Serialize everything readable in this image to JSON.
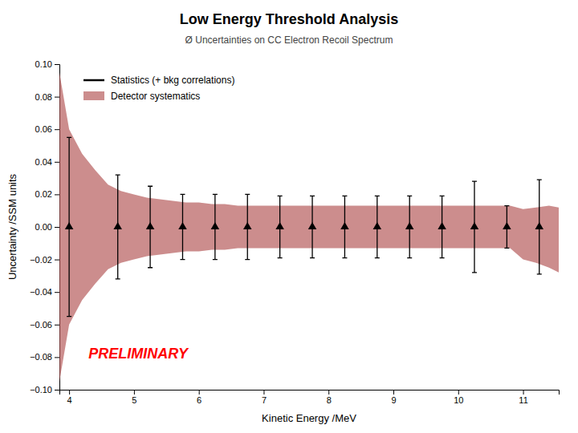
{
  "chart_data": {
    "type": "errorbar",
    "title": "Low Energy Threshold Analysis",
    "subtitle": "Ø Uncertainties on CC Electron Recoil Spectrum",
    "x_label": "Kinetic Energy /MeV",
    "y_label": "Uncertainty /SSM units",
    "xlim": [
      3.85,
      11.55
    ],
    "ylim": [
      -0.1,
      0.1
    ],
    "xticks": [
      4,
      5,
      6,
      7,
      8,
      9,
      10,
      11
    ],
    "yticks": [
      {
        "value": -0.1,
        "label": "−0.10"
      },
      {
        "value": -0.08,
        "label": "−0.08"
      },
      {
        "value": -0.06,
        "label": "−0.06"
      },
      {
        "value": -0.04,
        "label": "−0.04"
      },
      {
        "value": -0.02,
        "label": "−0.02"
      },
      {
        "value": 0.0,
        "label": "0.00"
      },
      {
        "value": 0.02,
        "label": "0.02"
      },
      {
        "value": 0.04,
        "label": "0.04"
      },
      {
        "value": 0.06,
        "label": "0.06"
      },
      {
        "value": 0.08,
        "label": "0.08"
      },
      {
        "value": 0.1,
        "label": "0.10"
      }
    ],
    "grid": false,
    "legend": "upper left",
    "series": [
      {
        "name": "Statistics (+ bkg correlations)",
        "type": "errorbar",
        "marker": "triangle",
        "color": "black",
        "x": [
          4.0,
          4.75,
          5.25,
          5.75,
          6.25,
          6.75,
          7.25,
          7.75,
          8.25,
          8.75,
          9.25,
          9.75,
          10.25,
          10.75,
          11.25
        ],
        "values": [
          0.0,
          0.0,
          0.0,
          0.0,
          0.0,
          0.0,
          0.0,
          0.0,
          0.0,
          0.0,
          0.0,
          0.0,
          0.0,
          0.0,
          0.0
        ],
        "errors": [
          0.055,
          0.032,
          0.025,
          0.02,
          0.02,
          0.02,
          0.019,
          0.019,
          0.019,
          0.019,
          0.019,
          0.019,
          0.028,
          0.013,
          0.029
        ]
      },
      {
        "name": "Detector systematics",
        "type": "area",
        "color": "#B05050",
        "x": [
          3.85,
          4.0,
          4.2,
          4.4,
          4.6,
          4.8,
          5.0,
          5.2,
          5.4,
          5.6,
          5.8,
          6.0,
          6.2,
          6.4,
          6.6,
          6.8,
          7.0,
          7.2,
          7.4,
          7.6,
          7.8,
          8.0,
          8.2,
          8.4,
          8.6,
          8.8,
          9.0,
          9.2,
          9.4,
          9.6,
          9.8,
          10.0,
          10.2,
          10.4,
          10.6,
          10.8,
          11.0,
          11.2,
          11.4,
          11.55
        ],
        "upper": [
          0.095,
          0.06,
          0.045,
          0.035,
          0.026,
          0.022,
          0.02,
          0.018,
          0.017,
          0.016,
          0.015,
          0.015,
          0.014,
          0.014,
          0.013,
          0.013,
          0.013,
          0.013,
          0.013,
          0.013,
          0.013,
          0.013,
          0.013,
          0.013,
          0.013,
          0.013,
          0.013,
          0.013,
          0.013,
          0.013,
          0.013,
          0.013,
          0.013,
          0.013,
          0.013,
          0.013,
          0.011,
          0.012,
          0.013,
          0.012
        ],
        "lower": [
          -0.095,
          -0.06,
          -0.045,
          -0.035,
          -0.026,
          -0.022,
          -0.02,
          -0.018,
          -0.017,
          -0.016,
          -0.015,
          -0.015,
          -0.014,
          -0.014,
          -0.013,
          -0.013,
          -0.013,
          -0.013,
          -0.013,
          -0.013,
          -0.013,
          -0.013,
          -0.013,
          -0.013,
          -0.013,
          -0.013,
          -0.013,
          -0.013,
          -0.013,
          -0.013,
          -0.013,
          -0.013,
          -0.013,
          -0.013,
          -0.013,
          -0.013,
          -0.02,
          -0.022,
          -0.025,
          -0.028
        ]
      }
    ],
    "annotations": [
      {
        "text": "PRELIMINARY",
        "x": 4.3,
        "y": -0.081,
        "color": "#FF0000"
      }
    ]
  }
}
